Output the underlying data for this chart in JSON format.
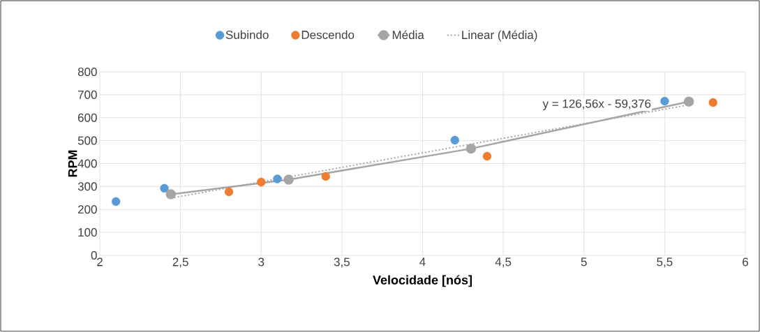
{
  "chart_data": {
    "type": "scatter",
    "xlabel": "Velocidade [nós]",
    "ylabel": "RPM",
    "xlim": [
      2,
      6
    ],
    "xticks": [
      {
        "value": 2,
        "label": "2"
      },
      {
        "value": 2.5,
        "label": "2,5"
      },
      {
        "value": 3,
        "label": "3"
      },
      {
        "value": 3.5,
        "label": "3,5"
      },
      {
        "value": 4,
        "label": "4"
      },
      {
        "value": 4.5,
        "label": "4,5"
      },
      {
        "value": 5,
        "label": "5"
      },
      {
        "value": 5.5,
        "label": "5,5"
      },
      {
        "value": 6,
        "label": "6"
      }
    ],
    "ylim": [
      0,
      800
    ],
    "yticks": [
      0,
      100,
      200,
      300,
      400,
      500,
      600,
      700,
      800
    ],
    "grid": true,
    "legend": "top",
    "marker": "circle",
    "series": [
      {
        "name": "Subindo",
        "color": "#5b9bd5",
        "x": [
          2.1,
          2.4,
          3.1,
          4.2,
          5.5
        ],
        "values": [
          234,
          292,
          333,
          502,
          672
        ]
      },
      {
        "name": "Descendo",
        "color": "#ed7d31",
        "x": [
          2.8,
          3.0,
          3.4,
          4.4,
          5.8
        ],
        "values": [
          277,
          319,
          344,
          432,
          666
        ]
      },
      {
        "name": "Média",
        "type": "line",
        "color": "#a5a5a5",
        "x": [
          2.44,
          3.17,
          4.3,
          5.65
        ],
        "values": [
          266,
          330,
          465,
          670
        ]
      },
      {
        "name": "Linear (Média)",
        "type": "line",
        "color": "#a5a5a5",
        "marker": "none",
        "line_style": "dotted",
        "x": [
          2.44,
          5.65
        ],
        "values": [
          249,
          656
        ]
      }
    ],
    "annotations": [
      "y = 126,56x - 59,376"
    ]
  }
}
